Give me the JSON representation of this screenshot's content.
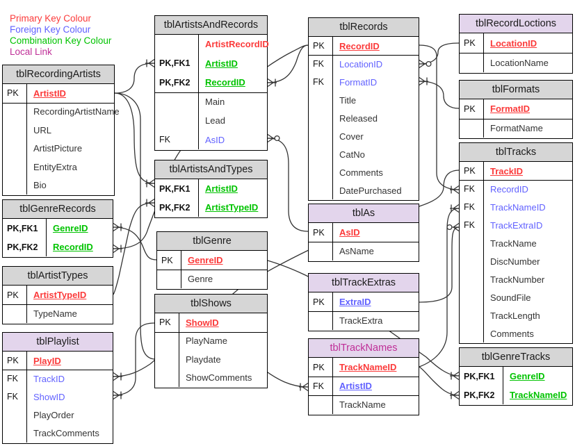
{
  "colors": {
    "primary_key": "#fb3a3a",
    "foreign_key": "#6161ff",
    "combination_key": "#00c300",
    "local_link": "#bf2e97",
    "plain_field": "#333333",
    "header_gray": "#d6d6d6",
    "header_lavender": "#e3d5ec",
    "line": "#333333"
  },
  "legend": {
    "items": [
      {
        "label": "Primary Key Colour",
        "color_key": "primary_key"
      },
      {
        "label": "Foreign Key Colour",
        "color_key": "foreign_key"
      },
      {
        "label": "Combination Key Colour",
        "color_key": "combination_key"
      },
      {
        "label": "Local Link",
        "color_key": "local_link"
      }
    ]
  },
  "tables": [
    {
      "id": "tblRecordingArtists",
      "title": "tblRecordingArtists",
      "header": "gray",
      "rows": [
        {
          "key": "PK",
          "field": "ArtistID",
          "style": "pk"
        },
        {
          "key": "",
          "field": "RecordingArtistName",
          "style": "plain"
        },
        {
          "key": "",
          "field": "URL",
          "style": "plain"
        },
        {
          "key": "",
          "field": "ArtistPicture",
          "style": "plain"
        },
        {
          "key": "",
          "field": "EntityExtra",
          "style": "plain"
        },
        {
          "key": "",
          "field": "Bio",
          "style": "plain"
        }
      ]
    },
    {
      "id": "tblGenreRecords",
      "title": "tblGenreRecords",
      "header": "gray",
      "rows": [
        {
          "key": "PK,FK1",
          "field": "GenreID",
          "style": "combo"
        },
        {
          "key": "PK,FK2",
          "field": "RecordID",
          "style": "combo"
        }
      ]
    },
    {
      "id": "tblArtistTypes",
      "title": "tblArtistTypes",
      "header": "gray",
      "rows": [
        {
          "key": "PK",
          "field": "ArtistTypeID",
          "style": "pk"
        },
        {
          "key": "",
          "field": "TypeName",
          "style": "plain"
        }
      ]
    },
    {
      "id": "tblPlaylist",
      "title": "tblPlaylist",
      "header": "lavender",
      "rows": [
        {
          "key": "PK",
          "field": "PlayID",
          "style": "pk"
        },
        {
          "key": "FK",
          "field": "TrackID",
          "style": "fk"
        },
        {
          "key": "FK",
          "field": "ShowID",
          "style": "fk"
        },
        {
          "key": "",
          "field": "PlayOrder",
          "style": "plain"
        },
        {
          "key": "",
          "field": "TrackComments",
          "style": "plain"
        }
      ]
    },
    {
      "id": "tblArtistsAndRecords",
      "title": "tblArtistsAndRecords",
      "header": "gray",
      "rows": [
        {
          "key": "",
          "field": "ArtistRecordID",
          "style": "pk_nokey"
        },
        {
          "key": "PK,FK1",
          "field": "ArtistID",
          "style": "combo"
        },
        {
          "key": "PK,FK2",
          "field": "RecordID",
          "style": "combo"
        },
        {
          "key": "",
          "field": "Main",
          "style": "plain"
        },
        {
          "key": "",
          "field": "Lead",
          "style": "plain"
        },
        {
          "key": "FK",
          "field": "AsID",
          "style": "fk"
        }
      ]
    },
    {
      "id": "tblArtistsAndTypes",
      "title": "tblArtistsAndTypes",
      "header": "gray",
      "rows": [
        {
          "key": "PK,FK1",
          "field": "ArtistID",
          "style": "combo"
        },
        {
          "key": "PK,FK2",
          "field": "ArtistTypeID",
          "style": "combo"
        }
      ]
    },
    {
      "id": "tblGenre",
      "title": "tblGenre",
      "header": "gray",
      "rows": [
        {
          "key": "PK",
          "field": "GenreID",
          "style": "pk"
        },
        {
          "key": "",
          "field": "Genre",
          "style": "plain"
        }
      ]
    },
    {
      "id": "tblShows",
      "title": "tblShows",
      "header": "gray",
      "rows": [
        {
          "key": "PK",
          "field": "ShowID",
          "style": "pk"
        },
        {
          "key": "",
          "field": "PlayName",
          "style": "plain"
        },
        {
          "key": "",
          "field": "Playdate",
          "style": "plain"
        },
        {
          "key": "",
          "field": "ShowComments",
          "style": "plain"
        }
      ]
    },
    {
      "id": "tblRecords",
      "title": "tblRecords",
      "header": "gray",
      "rows": [
        {
          "key": "PK",
          "field": "RecordID",
          "style": "pk"
        },
        {
          "key": "FK",
          "field": "LocationID",
          "style": "fk"
        },
        {
          "key": "FK",
          "field": "FormatID",
          "style": "fk"
        },
        {
          "key": "",
          "field": "Title",
          "style": "plain"
        },
        {
          "key": "",
          "field": "Released",
          "style": "plain"
        },
        {
          "key": "",
          "field": "Cover",
          "style": "plain"
        },
        {
          "key": "",
          "field": "CatNo",
          "style": "plain"
        },
        {
          "key": "",
          "field": "Comments",
          "style": "plain"
        },
        {
          "key": "",
          "field": "DatePurchased",
          "style": "plain"
        }
      ]
    },
    {
      "id": "tblAs",
      "title": "tblAs",
      "header": "lavender",
      "rows": [
        {
          "key": "PK",
          "field": "AsID",
          "style": "pk"
        },
        {
          "key": "",
          "field": "AsName",
          "style": "plain"
        }
      ]
    },
    {
      "id": "tblTrackExtras",
      "title": "tblTrackExtras",
      "header": "lavender",
      "rows": [
        {
          "key": "PK",
          "field": "ExtraID",
          "style": "fk_key"
        },
        {
          "key": "",
          "field": "TrackExtra",
          "style": "plain"
        }
      ]
    },
    {
      "id": "tblTrackNames",
      "title": "tblTrackNames",
      "header": "lavender",
      "title_color_key": "local_link",
      "rows": [
        {
          "key": "PK",
          "field": "TrackNameID",
          "style": "pk"
        },
        {
          "key": "FK",
          "field": "ArtistID",
          "style": "fk_key"
        },
        {
          "key": "",
          "field": "TrackName",
          "style": "plain"
        }
      ]
    },
    {
      "id": "tblRecordLoctions",
      "title": "tblRecordLoctions",
      "header": "lavender",
      "rows": [
        {
          "key": "PK",
          "field": "LocationID",
          "style": "pk"
        },
        {
          "key": "",
          "field": "LocationName",
          "style": "plain"
        }
      ]
    },
    {
      "id": "tblFormats",
      "title": "tblFormats",
      "header": "gray",
      "rows": [
        {
          "key": "PK",
          "field": "FormatID",
          "style": "pk"
        },
        {
          "key": "",
          "field": "FormatName",
          "style": "plain"
        }
      ]
    },
    {
      "id": "tblTracks",
      "title": "tblTracks",
      "header": "gray",
      "rows": [
        {
          "key": "PK",
          "field": "TrackID",
          "style": "pk"
        },
        {
          "key": "FK",
          "field": "RecordID",
          "style": "fk"
        },
        {
          "key": "FK",
          "field": "TrackNameID",
          "style": "fk"
        },
        {
          "key": "FK",
          "field": "TrackExtraID",
          "style": "fk"
        },
        {
          "key": "",
          "field": "TrackName",
          "style": "plain"
        },
        {
          "key": "",
          "field": "DiscNumber",
          "style": "plain"
        },
        {
          "key": "",
          "field": "TrackNumber",
          "style": "plain"
        },
        {
          "key": "",
          "field": "SoundFile",
          "style": "plain"
        },
        {
          "key": "",
          "field": "TrackLength",
          "style": "plain"
        },
        {
          "key": "",
          "field": "Comments",
          "style": "plain"
        }
      ]
    },
    {
      "id": "tblGenreTracks",
      "title": "tblGenreTracks",
      "header": "gray",
      "rows": [
        {
          "key": "PK,FK1",
          "field": "GenreID",
          "style": "combo"
        },
        {
          "key": "PK,FK2",
          "field": "TrackNameID",
          "style": "combo"
        }
      ]
    }
  ],
  "connectors": [
    {
      "from": "tblRecordingArtists.ArtistID",
      "to": "tblArtistsAndRecords.ArtistID",
      "many_marker": "crow"
    },
    {
      "from": "tblRecordingArtists.ArtistID",
      "to": "tblArtistsAndTypes.ArtistID",
      "many_marker": "crow"
    },
    {
      "from": "tblRecordingArtists.ArtistID",
      "to": "tblTrackNames.ArtistID",
      "many_marker": "crow"
    },
    {
      "from": "tblArtistTypes.ArtistTypeID",
      "to": "tblArtistsAndTypes.ArtistTypeID",
      "many_marker": "crow"
    },
    {
      "from": "tblRecords.RecordID",
      "to": "tblArtistsAndRecords.RecordID",
      "many_marker": "crow"
    },
    {
      "from": "tblRecords.RecordID",
      "to": "tblGenreRecords.RecordID",
      "many_marker": "crow"
    },
    {
      "from": "tblGenre.GenreID",
      "to": "tblGenreRecords.GenreID",
      "many_marker": "crow"
    },
    {
      "from": "tblGenre.GenreID",
      "to": "tblGenreTracks.GenreID",
      "many_marker": "crow"
    },
    {
      "from": "tblRecordLoctions.LocationID",
      "to": "tblRecords.LocationID",
      "many_marker": "crow_circle"
    },
    {
      "from": "tblFormats.FormatID",
      "to": "tblRecords.FormatID",
      "many_marker": "crow"
    },
    {
      "from": "tblAs.AsID",
      "to": "tblArtistsAndRecords.AsID",
      "many_marker": "crow_circle"
    },
    {
      "from": "tblRecords.RecordID",
      "to": "tblTracks.RecordID",
      "many_marker": "crow"
    },
    {
      "from": "tblTrackNames.TrackNameID",
      "to": "tblTracks.TrackNameID",
      "many_marker": "crow"
    },
    {
      "from": "tblTrackExtras.ExtraID",
      "to": "tblTracks.TrackExtraID",
      "many_marker": "crow_circle"
    },
    {
      "from": "tblTrackNames.TrackNameID",
      "to": "tblGenreTracks.TrackNameID",
      "many_marker": "crow"
    },
    {
      "from": "tblTracks.TrackID",
      "to": "tblPlaylist.TrackID",
      "many_marker": "crow"
    },
    {
      "from": "tblShows.ShowID",
      "to": "tblPlaylist.ShowID",
      "many_marker": "crow"
    }
  ]
}
